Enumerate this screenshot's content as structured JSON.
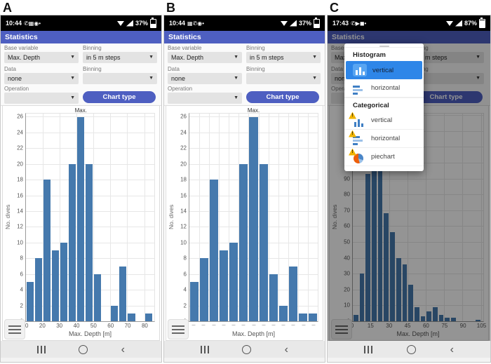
{
  "colors": {
    "app_header": "#4e5fc1",
    "chart_bar": "#4579ad",
    "button_blue": "#4e5fc1",
    "popup_selected_blue": "#2e86e8",
    "warning_yellow": "#f0b400",
    "pie_orange": "#ed5f0a",
    "icon_blue": "#3f7fc4"
  },
  "panels": [
    {
      "letter": "A",
      "dimmed": false,
      "show_popup": false,
      "chart_index": 0,
      "status": {
        "time": "10:44",
        "battery_text": "37%",
        "battery_pct": 37,
        "left_icons": [
          "whatsapp-icon",
          "gallery-icon",
          "chrome-icon",
          "notification-dot-icon"
        ]
      },
      "header": {
        "title": "Statistics"
      },
      "form": {
        "fields": [
          {
            "label": "Base variable",
            "value": "Max. Depth"
          },
          {
            "label": "Binning",
            "value": "in 5 m steps"
          },
          {
            "label": "Data",
            "value": "none"
          },
          {
            "label": "Binning",
            "value": ""
          },
          {
            "label": "Operation",
            "value": ""
          }
        ],
        "chart_type_button": "Chart type"
      }
    },
    {
      "letter": "B",
      "dimmed": false,
      "show_popup": false,
      "chart_index": 1,
      "status": {
        "time": "10:44",
        "battery_text": "37%",
        "battery_pct": 37,
        "left_icons": [
          "gallery-icon",
          "whatsapp-icon",
          "chrome-icon",
          "notification-dot-icon"
        ]
      },
      "header": {
        "title": "Statistics"
      },
      "form": {
        "fields": [
          {
            "label": "Base variable",
            "value": "Max. Depth"
          },
          {
            "label": "Binning",
            "value": "in 5 m steps"
          },
          {
            "label": "Data",
            "value": "none"
          },
          {
            "label": "Binning",
            "value": ""
          },
          {
            "label": "Operation",
            "value": ""
          }
        ],
        "chart_type_button": "Chart type"
      }
    },
    {
      "letter": "C",
      "dimmed": true,
      "show_popup": true,
      "chart_index": 2,
      "status": {
        "time": "17:43",
        "battery_text": "87%",
        "battery_pct": 87,
        "left_icons": [
          "whatsapp-icon",
          "youtube-icon",
          "app-icon",
          "notification-dot-icon"
        ]
      },
      "header": {
        "title": "Statistics"
      },
      "form": {
        "fields": [
          {
            "label": "Base variable",
            "value": "Max. Depth"
          },
          {
            "label": "Binning",
            "value": "in 5 m steps"
          },
          {
            "label": "Data",
            "value": "none"
          },
          {
            "label": "Binning",
            "value": ""
          },
          {
            "label": "Operation",
            "value": ""
          }
        ],
        "chart_type_button": "Chart type"
      }
    }
  ],
  "popup": {
    "sections": [
      {
        "title": "Histogram",
        "items": [
          {
            "label": "vertical",
            "icon": "histogram-vertical-icon",
            "selected": true
          },
          {
            "label": "horizontal",
            "icon": "histogram-horizontal-icon",
            "selected": false
          }
        ]
      },
      {
        "title": "Categorical",
        "items": [
          {
            "label": "vertical",
            "icon": "categorical-vertical-warning-icon",
            "selected": false
          },
          {
            "label": "horizontal",
            "icon": "categorical-horizontal-warning-icon",
            "selected": false
          },
          {
            "label": "piechart",
            "icon": "piechart-warning-icon",
            "selected": false
          }
        ]
      }
    ]
  },
  "chart_data": [
    {
      "type": "bar",
      "xlabel": "Max. Depth [m]",
      "ylabel": "No. dives",
      "bin_start": 10,
      "bin_width": 5,
      "values": [
        5,
        8,
        18,
        9,
        10,
        20,
        26,
        20,
        6,
        0,
        2,
        7,
        1,
        0,
        1
      ],
      "x_ticks": [
        10,
        20,
        30,
        40,
        50,
        60,
        70,
        80
      ],
      "x_grid": [
        20,
        30,
        40,
        50,
        60,
        70,
        80
      ],
      "y_ticks": [
        0,
        2,
        4,
        6,
        8,
        10,
        12,
        14,
        16,
        18,
        20,
        22,
        24,
        26
      ],
      "xlim": [
        10,
        86
      ],
      "ylim": [
        0,
        26.4
      ],
      "x_tick_style": "numbers",
      "annotation": {
        "text": "Max.",
        "bin_index": 6
      }
    },
    {
      "type": "bar",
      "xlabel": "Max. Depth [m]",
      "ylabel": "No. dives",
      "bin_start": 0,
      "bin_width": 1,
      "values": [
        5,
        8,
        18,
        9,
        10,
        20,
        26,
        20,
        6,
        2,
        7,
        1,
        1
      ],
      "x_ticks": [],
      "x_grid": [
        1,
        2,
        3,
        4,
        5,
        6,
        7,
        8,
        9,
        10,
        11,
        12
      ],
      "y_ticks": [
        0,
        2,
        4,
        6,
        8,
        10,
        12,
        14,
        16,
        18,
        20,
        22,
        24,
        26
      ],
      "xlim": [
        0,
        13
      ],
      "ylim": [
        0,
        26.4
      ],
      "x_tick_style": "dashes",
      "annotation": {
        "text": "Max.",
        "bin_index": 6
      }
    },
    {
      "type": "bar",
      "xlabel": "Max. Depth [m]",
      "ylabel": "No. dives",
      "bin_start": 0,
      "bin_width": 5,
      "values": [
        4,
        30,
        93,
        125,
        120,
        68,
        56,
        40,
        36,
        23,
        9,
        3,
        6,
        9,
        4,
        2,
        2,
        0,
        0,
        0,
        1
      ],
      "x_ticks": [
        0,
        15,
        30,
        45,
        60,
        75,
        90,
        105
      ],
      "x_grid": [
        15,
        30,
        45,
        60,
        75,
        90,
        105
      ],
      "y_ticks": [
        0,
        10,
        20,
        30,
        40,
        50,
        60,
        70,
        80,
        90
      ],
      "xlim": [
        0,
        107
      ],
      "ylim": [
        0,
        131
      ],
      "x_tick_style": "numbers",
      "annotation": null
    }
  ]
}
